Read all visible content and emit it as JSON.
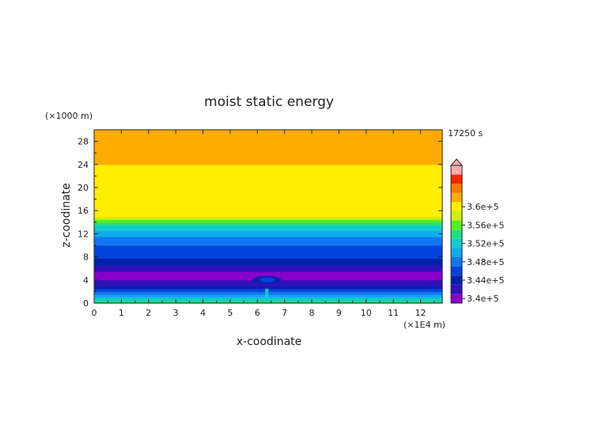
{
  "chart_data": {
    "type": "heatmap",
    "title": "moist static energy",
    "xlabel": "x-coodinate",
    "ylabel": "z-coodinate",
    "x_unit": "(×1E4 m)",
    "y_unit": "(×1000 m)",
    "time_label": "17250 s",
    "xlim": [
      0,
      12.8
    ],
    "ylim": [
      0,
      30
    ],
    "x_ticks": [
      "0",
      "1",
      "2",
      "3",
      "4",
      "5",
      "6",
      "7",
      "8",
      "9",
      "10",
      "11",
      "12"
    ],
    "y_ticks": [
      "0",
      "4",
      "8",
      "12",
      "16",
      "20",
      "24",
      "28"
    ],
    "colorbar": {
      "labels": [
        "3.6e+5",
        "3.56e+5",
        "3.52e+5",
        "3.48e+5",
        "3.44e+5",
        "3.4e+5"
      ],
      "min": 339000,
      "max": 361000,
      "step": 2000,
      "colors": [
        "#8800cc",
        "#3311bb",
        "#0022aa",
        "#0044dd",
        "#1177ee",
        "#11aaee",
        "#11cccc",
        "#22dd88",
        "#55ee22",
        "#ccee11",
        "#ffee00",
        "#ffaa00",
        "#ff7700",
        "#ff2200",
        "#ffaaaa"
      ],
      "extend": "max"
    },
    "profile": {
      "z": [
        0,
        0.5,
        1.0,
        1.5,
        2.0,
        2.5,
        3.0,
        3.5,
        4.0,
        5.0,
        6.0,
        7.0,
        8.0,
        9.0,
        10.0,
        11.0,
        12.0,
        13.0,
        13.8,
        14.5,
        15.2,
        30.0
      ],
      "mse": [
        354000,
        353000,
        350500,
        348500,
        347000,
        344500,
        343000,
        342000,
        341000,
        340500,
        341500,
        344000,
        345500,
        346500,
        347000,
        348000,
        350000,
        352000,
        354000,
        356500,
        359500,
        362000
      ]
    },
    "anomaly": {
      "x_center": 6.35,
      "z_center": 4.0,
      "mse_value": 344000,
      "note_stem": "updraft column near x≈6.35"
    },
    "grid": false,
    "legend": "colorbar-right"
  }
}
